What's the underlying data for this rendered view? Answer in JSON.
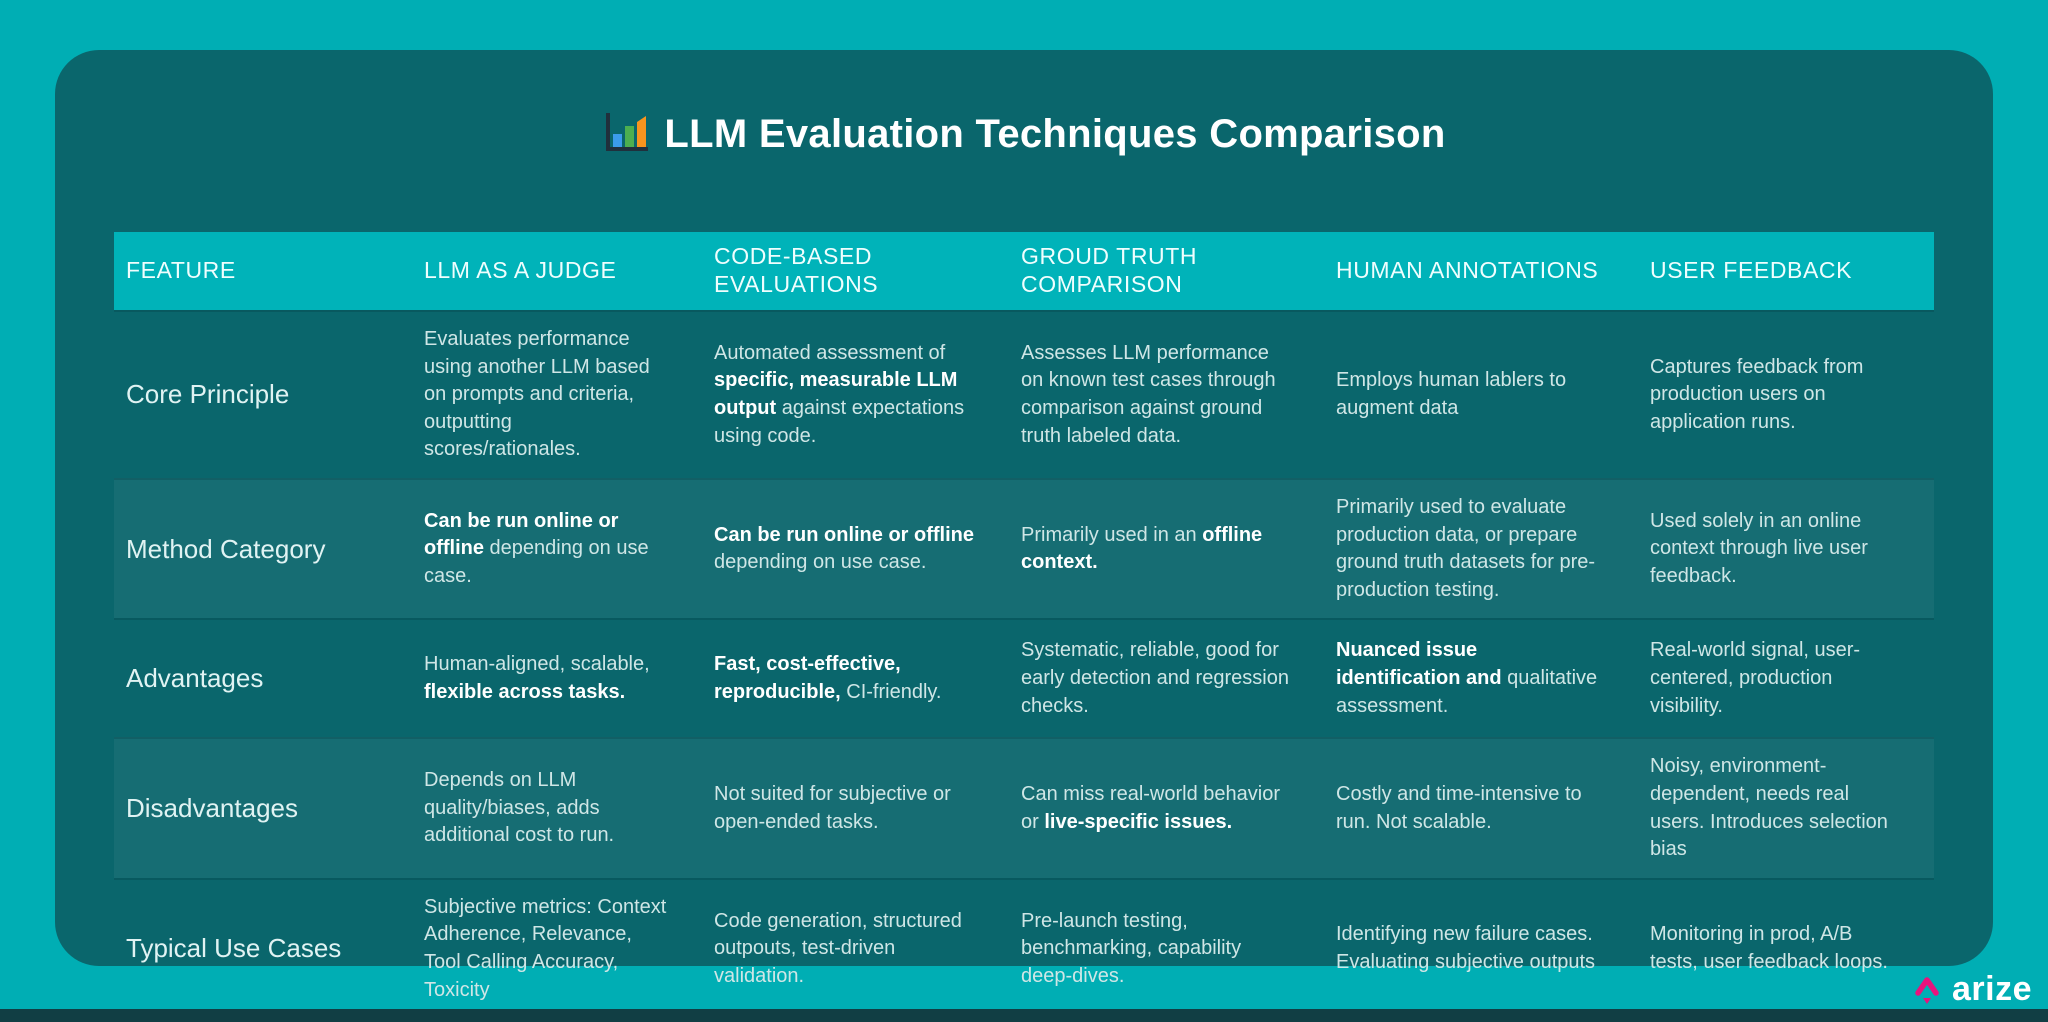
{
  "page": {
    "title": "LLM Evaluation Techniques Comparison",
    "title_icon": "bar-chart-icon"
  },
  "brand": {
    "name": "arize"
  },
  "colors": {
    "background_teal": "#00AEB4",
    "card_teal": "#0A666C",
    "header_teal": "#00B3B9",
    "stripe": "rgba(255,255,255,0.05)",
    "text_regular": "#CFE6E6",
    "text_bold": "#FFFFFF",
    "bar_blue": "#3B9CEA",
    "bar_green": "#4CAF50",
    "bar_orange": "#F7941E",
    "axis_dark": "#20303C",
    "arize_pink": "#E8137D",
    "bottom_strip": "#113E44"
  },
  "table": {
    "columns": [
      "FEATURE",
      "LLM AS A JUDGE",
      "CODE-BASED EVALUATIONS",
      "GROUD TRUTH COMPARISON",
      "HUMAN ANNOTATIONS",
      "USER FEEDBACK"
    ],
    "rows": [
      {
        "feature": "Core Principle",
        "cells": [
          [
            {
              "t": "Evaluates performance using another LLM based on prompts and criteria, outputting scores/rationales.",
              "b": false
            }
          ],
          [
            {
              "t": "Automated assessment of ",
              "b": false
            },
            {
              "t": "specific, measurable LLM output",
              "b": true
            },
            {
              "t": " against expectations using code.",
              "b": false
            }
          ],
          [
            {
              "t": "Assesses LLM performance on known test cases through comparison against ground truth labeled data.",
              "b": false
            }
          ],
          [
            {
              "t": "Employs human lablers to augment data",
              "b": false
            }
          ],
          [
            {
              "t": "Captures feedback from production users on application runs.",
              "b": false
            }
          ]
        ]
      },
      {
        "feature": "Method Category",
        "cells": [
          [
            {
              "t": "Can be run online or offline",
              "b": true
            },
            {
              "t": " depending on use case.",
              "b": false
            }
          ],
          [
            {
              "t": "Can be run online or offline",
              "b": true
            },
            {
              "t": " depending on use case.",
              "b": false
            }
          ],
          [
            {
              "t": "Primarily used in an ",
              "b": false
            },
            {
              "t": "offline context.",
              "b": true
            }
          ],
          [
            {
              "t": "Primarily used to evaluate production data, or prepare ground truth datasets for pre-production testing.",
              "b": false
            }
          ],
          [
            {
              "t": "Used solely in an online context through live user feedback.",
              "b": false
            }
          ]
        ]
      },
      {
        "feature": "Advantages",
        "cells": [
          [
            {
              "t": "Human-aligned, scalable, ",
              "b": false
            },
            {
              "t": "flexible across tasks.",
              "b": true
            }
          ],
          [
            {
              "t": "Fast, cost-effective, reproducible,",
              "b": true
            },
            {
              "t": " CI-friendly.",
              "b": false
            }
          ],
          [
            {
              "t": "Systematic, reliable, good for early detection and regression checks.",
              "b": false
            }
          ],
          [
            {
              "t": "Nuanced issue identification and",
              "b": true
            },
            {
              "t": " qualitative assessment.",
              "b": false
            }
          ],
          [
            {
              "t": "Real-world signal, user-centered, production visibility.",
              "b": false
            }
          ]
        ]
      },
      {
        "feature": "Disadvantages",
        "cells": [
          [
            {
              "t": "Depends on LLM quality/biases, adds additional cost to run.",
              "b": false
            }
          ],
          [
            {
              "t": "Not suited for subjective or open-ended tasks.",
              "b": false
            }
          ],
          [
            {
              "t": "Can miss real-world behavior or ",
              "b": false
            },
            {
              "t": "live-specific issues.",
              "b": true
            }
          ],
          [
            {
              "t": "Costly and time-intensive to run. Not scalable.",
              "b": false
            }
          ],
          [
            {
              "t": "Noisy, environment-dependent, needs real users. Introduces selection bias",
              "b": false
            }
          ]
        ]
      },
      {
        "feature": "Typical Use Cases",
        "cells": [
          [
            {
              "t": "Subjective metrics: Context Adherence, Relevance, Tool Calling Accuracy, Toxicity",
              "b": false
            }
          ],
          [
            {
              "t": "Code generation, structured outpouts, test-driven validation.",
              "b": false
            }
          ],
          [
            {
              "t": "Pre-launch testing, benchmarking, capability deep-dives.",
              "b": false
            }
          ],
          [
            {
              "t": "Identifying new failure cases. Evaluating subjective outputs",
              "b": false
            }
          ],
          [
            {
              "t": "Monitoring in prod, A/B tests, user feedback loops.",
              "b": false
            }
          ]
        ]
      }
    ]
  }
}
